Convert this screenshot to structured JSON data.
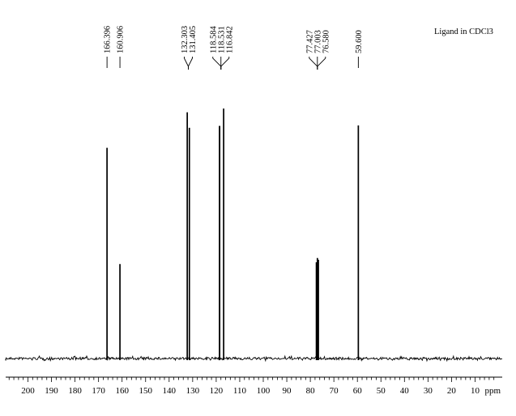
{
  "chart_data": {
    "type": "line",
    "title": "Ligand in CDCl3",
    "xlabel": "ppm",
    "x_reversed": true,
    "xlim": [
      212,
      2
    ],
    "x_ticks": [
      200,
      190,
      180,
      170,
      160,
      150,
      140,
      130,
      120,
      110,
      100,
      90,
      80,
      70,
      60,
      50,
      40,
      30,
      20,
      10
    ],
    "x_tick_labels": [
      "200",
      "190",
      "180",
      "170",
      "160",
      "150",
      "140",
      "130",
      "120",
      "110",
      "100",
      "90",
      "80",
      "70",
      "60",
      "50",
      "40",
      "30",
      "20",
      "10"
    ],
    "minor_tick_step": 2,
    "y_baseline": 0,
    "peaks": [
      {
        "ppm": 166.396,
        "height": 0.832
      },
      {
        "ppm": 160.906,
        "height": 0.373
      },
      {
        "ppm": 132.303,
        "height": 0.972
      },
      {
        "ppm": 131.405,
        "height": 0.911
      },
      {
        "ppm": 118.584,
        "height": 0.918
      },
      {
        "ppm": 118.531,
        "height": 0.918
      },
      {
        "ppm": 116.842,
        "height": 0.987
      },
      {
        "ppm": 77.427,
        "height": 0.38
      },
      {
        "ppm": 77.003,
        "height": 0.397
      },
      {
        "ppm": 76.58,
        "height": 0.39
      },
      {
        "ppm": 59.6,
        "height": 0.92
      }
    ],
    "peak_labels": [
      {
        "text": "166.396",
        "group": 0
      },
      {
        "text": "160.906",
        "group": 1
      },
      {
        "text": "132.303",
        "group": 2
      },
      {
        "text": "131.405",
        "group": 2
      },
      {
        "text": "118.584",
        "group": 3
      },
      {
        "text": "118.531",
        "group": 3
      },
      {
        "text": "116.842",
        "group": 3
      },
      {
        "text": "77.427",
        "group": 4
      },
      {
        "text": "77.003",
        "group": 4
      },
      {
        "text": "76.580",
        "group": 4
      },
      {
        "text": "59.600",
        "group": 5
      }
    ],
    "label_groups": [
      {
        "ppm": 166.396
      },
      {
        "ppm": 160.906
      },
      {
        "ppm": 131.854
      },
      {
        "ppm": 117.986
      },
      {
        "ppm": 77.003
      },
      {
        "ppm": 59.6
      }
    ]
  }
}
